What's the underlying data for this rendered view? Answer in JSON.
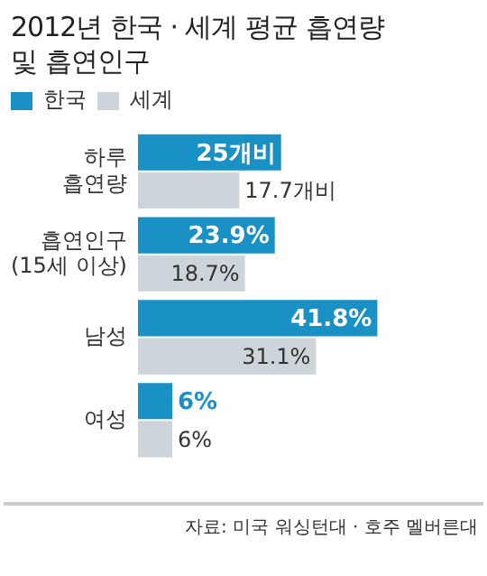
{
  "chart_data": {
    "type": "bar",
    "orientation": "horizontal",
    "title": "2012년 한국 · 세계 평균 흡연량\n및 흡연인구",
    "categories": [
      "하루\n흡연량",
      "흡연인구\n(15세 이상)",
      "남성",
      "여성"
    ],
    "series": [
      {
        "name": "한국",
        "color": "#1a91c4",
        "values": [
          25,
          23.9,
          41.8,
          6
        ],
        "value_labels": [
          "25개비",
          "23.9%",
          "41.8%",
          "6%"
        ]
      },
      {
        "name": "세계",
        "color": "#cdd5da",
        "values": [
          17.7,
          18.7,
          31.1,
          6
        ],
        "value_labels": [
          "17.7개비",
          "18.7%",
          "31.1%",
          "6%"
        ]
      }
    ],
    "legend": "top left",
    "grid": false,
    "annotations": [
      "자료: 미국 워싱턴대 · 호주 멜버른대"
    ]
  }
}
